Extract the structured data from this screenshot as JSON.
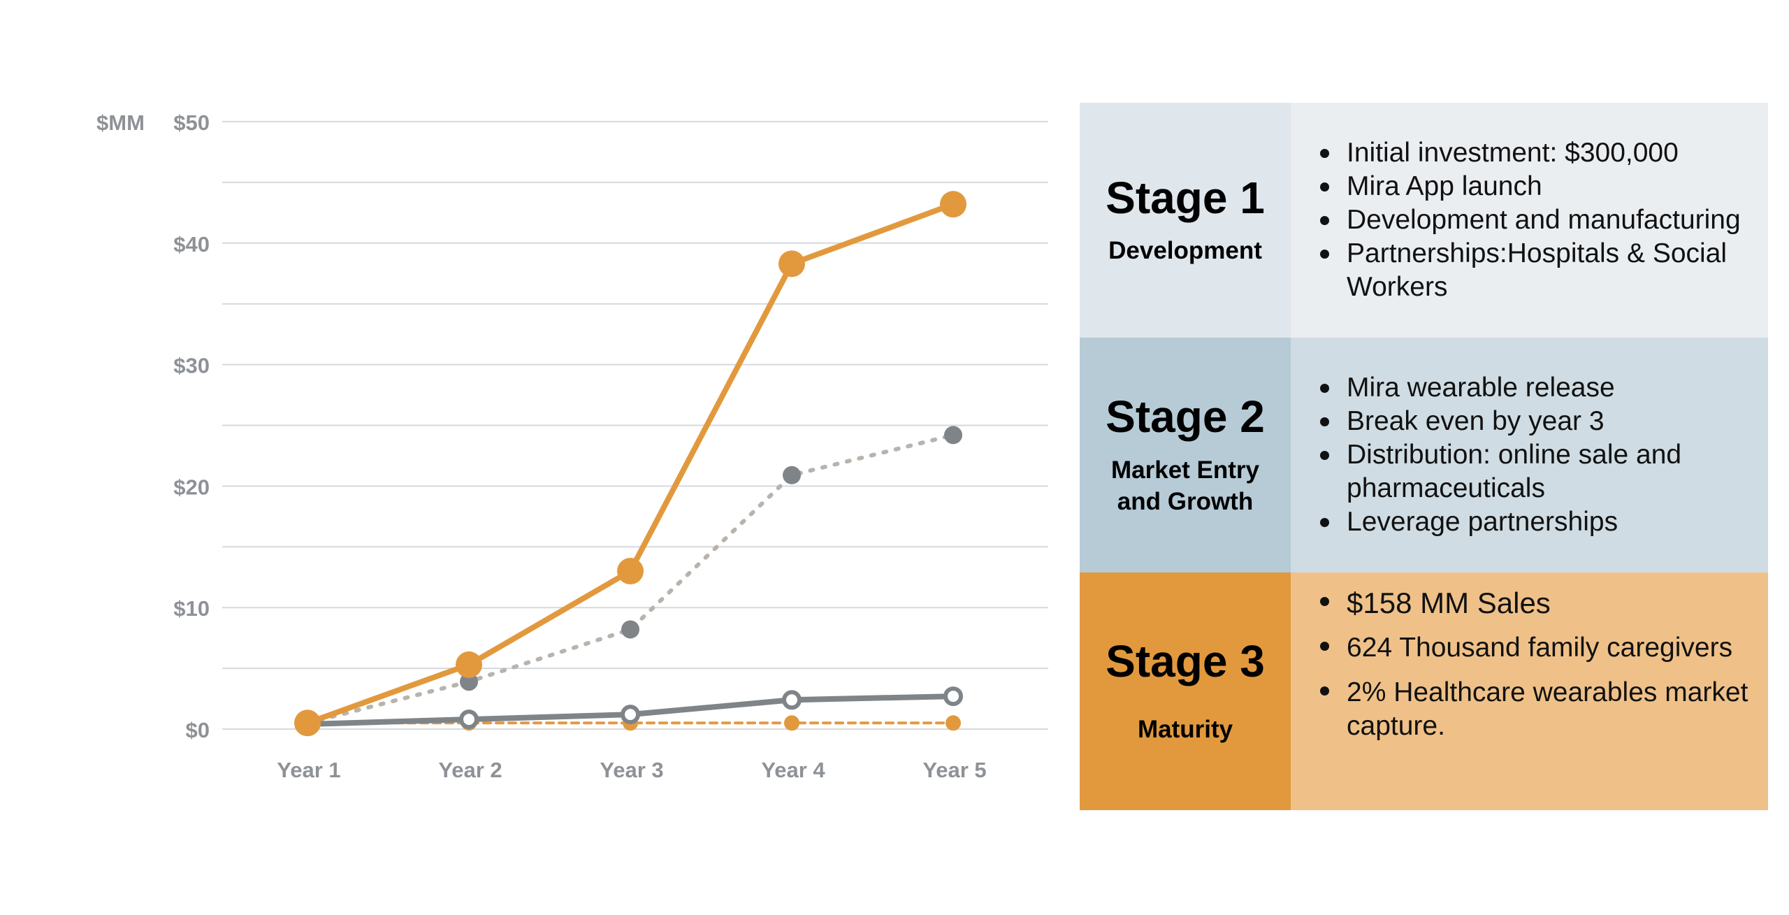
{
  "chart_data": {
    "type": "line",
    "categories": [
      "Year 1",
      "Year 2",
      "Year 3",
      "Year 4",
      "Year 5"
    ],
    "yunit_label": "$MM",
    "yticks": [
      "$0",
      "$10",
      "$20",
      "$30",
      "$40",
      "$50"
    ],
    "ylim": [
      0,
      50
    ],
    "grid": true,
    "series": [
      {
        "values": [
          0.5,
          5.3,
          13,
          38.3,
          43.2
        ],
        "color": "#e2993d",
        "style": "solid",
        "marker": "filled"
      },
      {
        "values": [
          0.5,
          3.9,
          8.2,
          20.9,
          24.2
        ],
        "color": "#b8b3ad",
        "marker_color": "#7f8489",
        "style": "dotted",
        "marker": "filled"
      },
      {
        "values": [
          0.4,
          0.8,
          1.2,
          2.4,
          2.7
        ],
        "color": "#7f8489",
        "style": "solid",
        "marker": "hollow"
      },
      {
        "values": [
          0.5,
          0.5,
          0.5,
          0.5,
          0.5
        ],
        "color": "#e2993d",
        "style": "dashed",
        "marker": "filled-small"
      }
    ]
  },
  "stages": [
    {
      "title": "Stage 1",
      "subtitle": "Development",
      "bullets": [
        "Initial investment:  $300,000",
        "Mira App launch",
        "Development and manufacturing",
        "Partnerships:Hospitals & Social Workers"
      ]
    },
    {
      "title": "Stage 2",
      "subtitle": "Market Entry and Growth",
      "bullets": [
        "Mira wearable release",
        "Break even by year 3",
        "Distribution: online sale and pharmaceuticals",
        "Leverage partnerships"
      ]
    },
    {
      "title": "Stage 3",
      "subtitle": "Maturity",
      "bullets": [
        "$158 MM Sales",
        "624 Thousand family caregivers",
        "2% Healthcare wearables market capture."
      ]
    }
  ]
}
